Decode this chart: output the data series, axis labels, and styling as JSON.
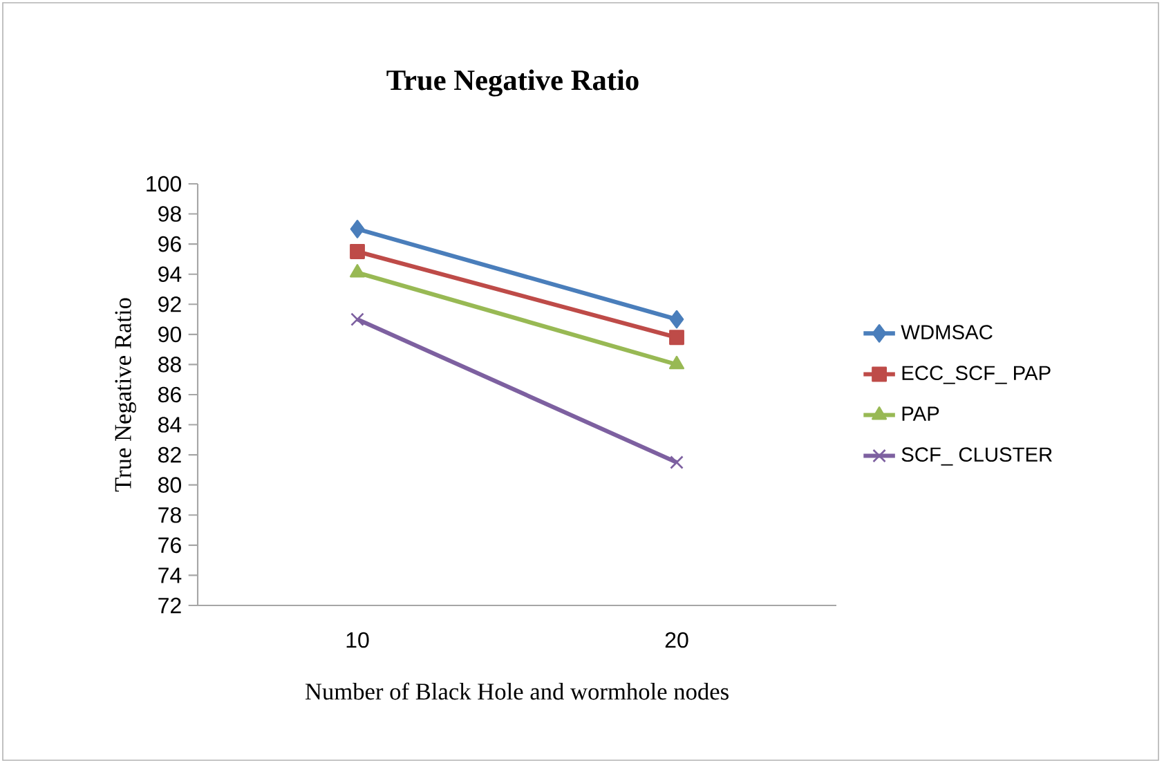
{
  "chart_data": {
    "type": "line",
    "title": "True Negative Ratio",
    "xlabel": "Number of Black Hole and wormhole nodes",
    "ylabel": "True Negative Ratio",
    "categories": [
      "10",
      "20"
    ],
    "series": [
      {
        "name": "WDMSAC",
        "color": "#4a7ebb",
        "marker": "diamond",
        "values": [
          97,
          91
        ]
      },
      {
        "name": "ECC_SCF_ PAP",
        "color": "#be4b48",
        "marker": "square",
        "values": [
          95.5,
          89.8
        ]
      },
      {
        "name": "PAP",
        "color": "#98b954",
        "marker": "triangle",
        "values": [
          94.1,
          88
        ]
      },
      {
        "name": "SCF_ CLUSTER",
        "color": "#7d60a0",
        "marker": "cross",
        "values": [
          91,
          81.5
        ]
      }
    ],
    "ylim": [
      72,
      100
    ],
    "yticks": [
      72,
      74,
      76,
      78,
      80,
      82,
      84,
      86,
      88,
      90,
      92,
      94,
      96,
      98,
      100
    ],
    "grid": false,
    "legend": "right",
    "line_style": "solid"
  }
}
